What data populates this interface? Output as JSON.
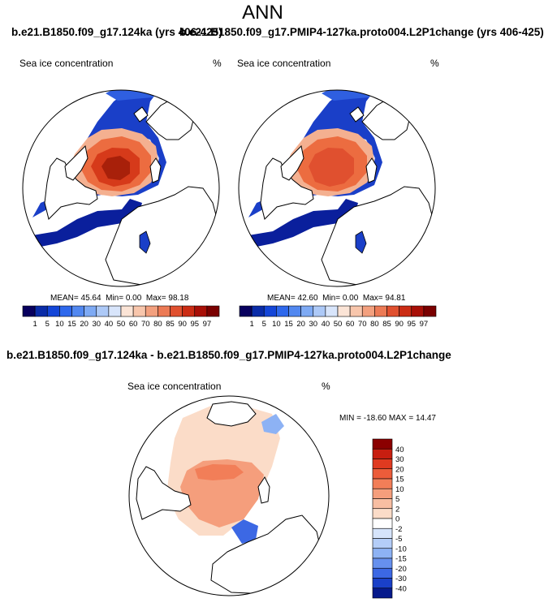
{
  "page_title": "ANN",
  "headers": {
    "left_case": "b.e21.B1850.f09_g17.124ka (yrs 406-425)",
    "right_case": "b.e21.B1850.f09_g17.PMIP4-127ka.proto004.L2P1change (yrs 406-425)",
    "diff_title": "b.e21.B1850.f09_g17.124ka - b.e21.B1850.f09_g17.PMIP4-127ka.proto004.L2P1change"
  },
  "chart_data": [
    {
      "type": "heatmap",
      "title": "Sea ice concentration",
      "units": "%",
      "stats": {
        "mean_label": "MEAN=",
        "mean": "45.64",
        "min_label": "Min=",
        "min": "0.00",
        "max_label": "Max=",
        "max": "98.18"
      },
      "colorbar": {
        "levels": [
          "1",
          "5",
          "10",
          "15",
          "20",
          "30",
          "40",
          "50",
          "60",
          "70",
          "80",
          "85",
          "90",
          "95",
          "97"
        ],
        "colors": [
          "#08005e",
          "#0a2ca8",
          "#1446d8",
          "#2e68ec",
          "#5288f0",
          "#7eaaf4",
          "#adc9f7",
          "#d8e5fb",
          "#fbe4d6",
          "#f8c6ac",
          "#f3a07e",
          "#ec7a55",
          "#e0502f",
          "#cb2c14",
          "#a80f07",
          "#7a0000"
        ]
      }
    },
    {
      "type": "heatmap",
      "title": "Sea ice concentration",
      "units": "%",
      "stats": {
        "mean_label": "MEAN=",
        "mean": "42.60",
        "min_label": "Min=",
        "min": "0.00",
        "max_label": "Max=",
        "max": "94.81"
      },
      "colorbar": {
        "levels": [
          "1",
          "5",
          "10",
          "15",
          "20",
          "30",
          "40",
          "50",
          "60",
          "70",
          "80",
          "85",
          "90",
          "95",
          "97"
        ],
        "colors": [
          "#08005e",
          "#0a2ca8",
          "#1446d8",
          "#2e68ec",
          "#5288f0",
          "#7eaaf4",
          "#adc9f7",
          "#d8e5fb",
          "#fbe4d6",
          "#f8c6ac",
          "#f3a07e",
          "#ec7a55",
          "#e0502f",
          "#cb2c14",
          "#a80f07",
          "#7a0000"
        ]
      }
    },
    {
      "type": "heatmap",
      "title": "Sea ice concentration",
      "units": "%",
      "stats": {
        "min_label": "MIN =",
        "min": "-18.60",
        "max_label": "MAX =",
        "max": "14.47"
      },
      "colorbar": {
        "levels": [
          "40",
          "30",
          "20",
          "15",
          "10",
          "5",
          "2",
          "0",
          "-2",
          "-5",
          "-10",
          "-15",
          "-20",
          "-30",
          "-40"
        ],
        "colors": [
          "#8b0000",
          "#c81e10",
          "#e03a20",
          "#ec5c3a",
          "#f27e58",
          "#f59e7c",
          "#f8bea2",
          "#fbdcc8",
          "#ffffff",
          "#d6e4fb",
          "#b4cdf8",
          "#8db2f4",
          "#6690ee",
          "#3c68e4",
          "#1a40c8",
          "#061a8c"
        ]
      }
    }
  ]
}
